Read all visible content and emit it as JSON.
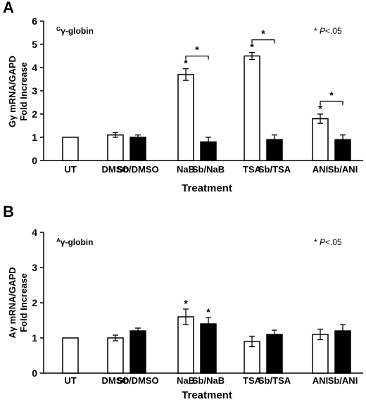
{
  "chart_data": [
    {
      "type": "bar",
      "panel_label": "A",
      "inset_label_sup": "G",
      "inset_label_main": "γ-globin",
      "significance_prefix": "* ",
      "significance_p": "P",
      "significance_suffix": "<.05",
      "ylabel_line1_sub": "G",
      "ylabel_line1": "γ mRNA/GAPD",
      "ylabel_line2": "Fold Increase",
      "xlabel": "Treatment",
      "ylim": [
        0,
        6
      ],
      "yticks": [
        "0",
        "1",
        "2",
        "3",
        "4",
        "5",
        "6"
      ],
      "categories": [
        "UT",
        "DMSO",
        "Sb/DMSO",
        "NaB",
        "Sb/NaB",
        "TSA",
        "Sb/TSA",
        "ANI",
        "Sb/ANI"
      ],
      "values": [
        1.0,
        1.1,
        1.0,
        3.7,
        0.8,
        4.5,
        0.9,
        1.8,
        0.9
      ],
      "errors": [
        0,
        0.1,
        0.1,
        0.25,
        0.2,
        0.15,
        0.2,
        0.2,
        0.2
      ],
      "fills": [
        "white",
        "white",
        "black",
        "white",
        "black",
        "white",
        "black",
        "white",
        "black"
      ],
      "stars": [
        "",
        "",
        "",
        "*",
        "",
        "*",
        "",
        "*",
        ""
      ],
      "brackets": [
        {
          "from": 3,
          "to": 4,
          "label": "*"
        },
        {
          "from": 5,
          "to": 6,
          "label": "*"
        },
        {
          "from": 7,
          "to": 8,
          "label": "*"
        }
      ]
    },
    {
      "type": "bar",
      "panel_label": "B",
      "inset_label_sup": "A",
      "inset_label_main": "γ-globin",
      "significance_prefix": "* ",
      "significance_p": "P",
      "significance_suffix": "<.05",
      "ylabel_line1_sub": "A",
      "ylabel_line1": "γ mRNA/GAPD",
      "ylabel_line2": "Fold Increase",
      "xlabel": "Treatment",
      "ylim": [
        0,
        4
      ],
      "yticks": [
        "0",
        "1",
        "2",
        "3",
        "4"
      ],
      "categories": [
        "UT",
        "DMSO",
        "Sb/DMSO",
        "NaB",
        "Sb/NaB",
        "TSA",
        "Sb/TSA",
        "ANI",
        "Sb/ANI"
      ],
      "values": [
        1.0,
        1.0,
        1.2,
        1.6,
        1.4,
        0.9,
        1.1,
        1.1,
        1.2
      ],
      "errors": [
        0,
        0.08,
        0.08,
        0.22,
        0.18,
        0.15,
        0.12,
        0.15,
        0.18
      ],
      "fills": [
        "white",
        "white",
        "black",
        "white",
        "black",
        "white",
        "black",
        "white",
        "black"
      ],
      "stars": [
        "",
        "",
        "",
        "*",
        "*",
        "",
        "",
        "",
        ""
      ],
      "brackets": []
    }
  ]
}
